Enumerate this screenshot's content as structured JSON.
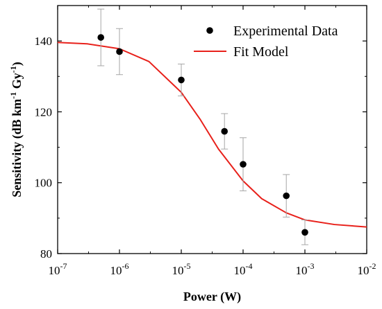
{
  "chart_data": {
    "type": "scatter",
    "x_scale": "log",
    "xlim": [
      1e-07,
      0.01
    ],
    "ylim": [
      80,
      150
    ],
    "xlabel": "Power (W)",
    "ylabel_parts": [
      "Sensitivity (dB km",
      "-1",
      " Gy",
      "-1",
      ")"
    ],
    "x_ticks": [
      {
        "base": "10",
        "exp": "-7",
        "value": 1e-07
      },
      {
        "base": "10",
        "exp": "-6",
        "value": 1e-06
      },
      {
        "base": "10",
        "exp": "-5",
        "value": 1e-05
      },
      {
        "base": "10",
        "exp": "-4",
        "value": 0.0001
      },
      {
        "base": "10",
        "exp": "-3",
        "value": 0.001
      },
      {
        "base": "10",
        "exp": "-2",
        "value": 0.01
      }
    ],
    "y_ticks": [
      80,
      100,
      120,
      140
    ],
    "series": [
      {
        "name": "Experimental Data",
        "kind": "points",
        "color": "#000000",
        "errorbar_color": "#a6a6a6",
        "points": [
          {
            "x": 5e-07,
            "y": 141.0,
            "err": 8.0
          },
          {
            "x": 1e-06,
            "y": 137.0,
            "err": 6.5
          },
          {
            "x": 1e-05,
            "y": 129.0,
            "err": 4.5
          },
          {
            "x": 5e-05,
            "y": 114.5,
            "err": 5.0
          },
          {
            "x": 0.0001,
            "y": 105.2,
            "err": 7.5
          },
          {
            "x": 0.0005,
            "y": 96.3,
            "err": 6.0
          },
          {
            "x": 0.001,
            "y": 86.0,
            "err": 3.5
          }
        ]
      },
      {
        "name": "Fit Model",
        "kind": "line",
        "color": "#e8201a",
        "points": [
          {
            "x": 1e-07,
            "y": 139.6
          },
          {
            "x": 3e-07,
            "y": 139.2
          },
          {
            "x": 1e-06,
            "y": 137.8
          },
          {
            "x": 3e-06,
            "y": 134.2
          },
          {
            "x": 1e-05,
            "y": 125.5
          },
          {
            "x": 2e-05,
            "y": 118.0
          },
          {
            "x": 4e-05,
            "y": 109.5
          },
          {
            "x": 0.0001,
            "y": 100.5
          },
          {
            "x": 0.0002,
            "y": 95.5
          },
          {
            "x": 0.0005,
            "y": 91.5
          },
          {
            "x": 0.001,
            "y": 89.5
          },
          {
            "x": 0.003,
            "y": 88.2
          },
          {
            "x": 0.01,
            "y": 87.5
          }
        ]
      }
    ],
    "legend": {
      "position": "top-right"
    },
    "grid": false
  }
}
